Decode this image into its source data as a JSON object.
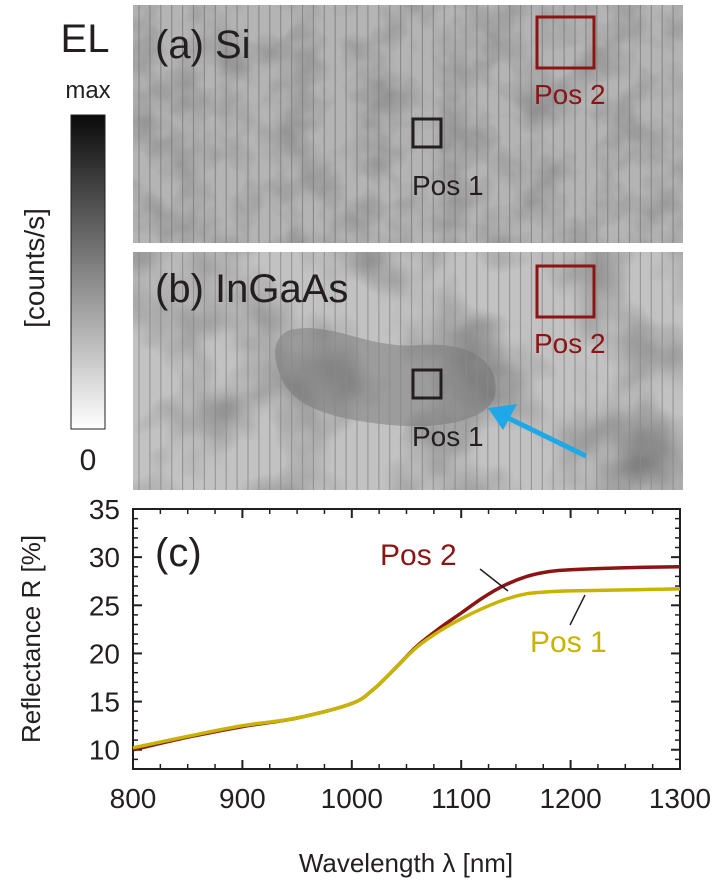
{
  "colorbar": {
    "title": "EL",
    "max_label": "max",
    "min_label": "0",
    "unit_label": "[counts/s]"
  },
  "panels": {
    "a": {
      "label": "(a) Si",
      "pos1_label": "Pos 1",
      "pos2_label": "Pos 2"
    },
    "b": {
      "label": "(b) InGaAs",
      "pos1_label": "Pos 1",
      "pos2_label": "Pos 2"
    }
  },
  "colors": {
    "pos1": "#c8b400",
    "pos2": "#8b1414",
    "box_pos1": "#231f20",
    "arrow": "#1ea8e8"
  },
  "chart_data": {
    "type": "line",
    "panel_label": "(c)",
    "xlabel": "Wavelength λ [nm]",
    "ylabel": "Reflectance R [%]",
    "xlim": [
      800,
      1300
    ],
    "ylim": [
      8,
      35
    ],
    "x_ticks": [
      800,
      900,
      1000,
      1100,
      1200,
      1300
    ],
    "y_ticks": [
      10,
      15,
      20,
      25,
      30,
      35
    ],
    "series": [
      {
        "name": "Pos 2",
        "x": [
          800,
          850,
          900,
          950,
          1000,
          1020,
          1040,
          1060,
          1080,
          1100,
          1120,
          1140,
          1160,
          1180,
          1200,
          1250,
          1300
        ],
        "y": [
          10.0,
          11.3,
          12.4,
          13.3,
          14.8,
          16.3,
          18.5,
          20.8,
          22.6,
          24.2,
          25.8,
          27.1,
          28.0,
          28.5,
          28.7,
          28.9,
          29.0
        ]
      },
      {
        "name": "Pos 1",
        "x": [
          800,
          850,
          900,
          950,
          1000,
          1020,
          1040,
          1060,
          1080,
          1100,
          1120,
          1140,
          1160,
          1180,
          1200,
          1250,
          1300
        ],
        "y": [
          10.2,
          11.4,
          12.5,
          13.3,
          14.8,
          16.3,
          18.5,
          20.7,
          22.3,
          23.6,
          24.7,
          25.6,
          26.2,
          26.4,
          26.5,
          26.6,
          26.7
        ]
      }
    ]
  }
}
